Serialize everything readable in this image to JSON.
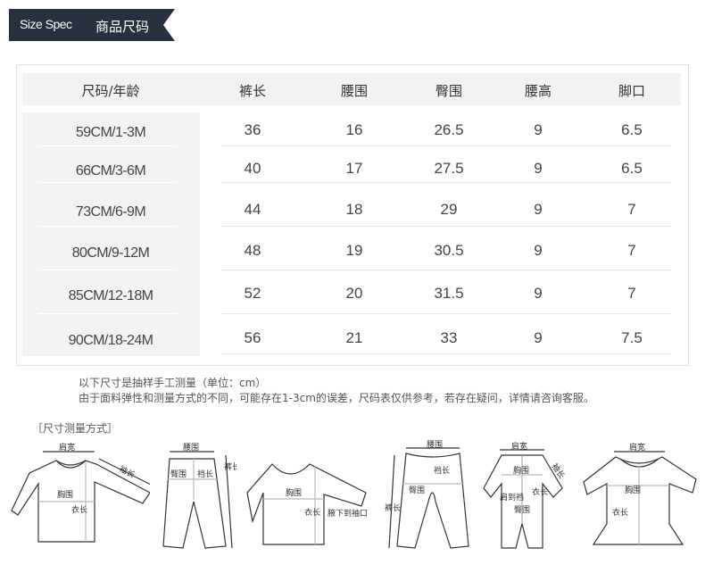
{
  "banner": {
    "en": "Size Spec",
    "cn": "商品尺码",
    "bg_color": "#29303f"
  },
  "table": {
    "headers": [
      "尺码/年龄",
      "裤长",
      "腰围",
      "臀围",
      "腰高",
      "脚口"
    ],
    "rows": [
      [
        "59CM/1-3M",
        "36",
        "16",
        "26.5",
        "9",
        "6.5"
      ],
      [
        "66CM/3-6M",
        "40",
        "17",
        "27.5",
        "9",
        "6.5"
      ],
      [
        "73CM/6-9M",
        "44",
        "18",
        "29",
        "9",
        "7"
      ],
      [
        "80CM/9-12M",
        "48",
        "19",
        "30.5",
        "9",
        "7"
      ],
      [
        "85CM/12-18M",
        "52",
        "20",
        "31.5",
        "9",
        "7"
      ],
      [
        "90CM/18-24M",
        "56",
        "21",
        "33",
        "9",
        "7.5"
      ]
    ]
  },
  "notes": {
    "line1": "以下尺寸是抽样手工测量（单位：cm）",
    "line2": "由于面料弹性和测量方式的不同，可能存在1-3cm的误差，尺码表仅供参考，若存在疑问，详情请咨询客服。"
  },
  "method_title": "［尺寸测量方式］",
  "diagrams": [
    {
      "name": "long-sleeve-top",
      "labels": [
        "肩宽",
        "袖长",
        "胸围",
        "衣长"
      ]
    },
    {
      "name": "pants",
      "labels": [
        "腰围",
        "臀围",
        "裆长",
        "裤长"
      ]
    },
    {
      "name": "raglan-top",
      "labels": [
        "胸围",
        "衣长",
        "腋下到袖口"
      ]
    },
    {
      "name": "open-crotch-pants",
      "labels": [
        "腰围",
        "裆长",
        "臀围",
        "裤长"
      ]
    },
    {
      "name": "romper",
      "labels": [
        "肩宽",
        "袖长",
        "胸围",
        "肩到裆",
        "衣长",
        "臀围"
      ]
    },
    {
      "name": "dress",
      "labels": [
        "肩宽",
        "胸围",
        "衣长"
      ]
    }
  ]
}
